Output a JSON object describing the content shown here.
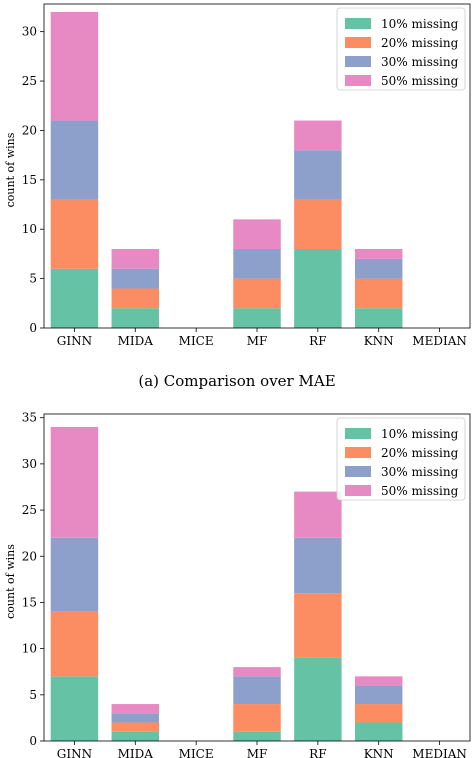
{
  "colors": {
    "s10": "#66c2a5",
    "s20": "#fc8d62",
    "s30": "#8da0cb",
    "s50": "#e78ac3"
  },
  "chart_data": [
    {
      "type": "bar",
      "stacked": true,
      "caption": "(a)  Comparison over MAE",
      "ylabel": "count of wins",
      "categories": [
        "GINN",
        "MIDA",
        "MICE",
        "MF",
        "RF",
        "KNN",
        "MEDIAN"
      ],
      "ylim": [
        0,
        32.8
      ],
      "yticks": [
        0,
        5,
        10,
        15,
        20,
        25,
        30
      ],
      "legend_position": "top-right",
      "series": [
        {
          "name": "10% missing",
          "color": "#66c2a5",
          "values": [
            6,
            2,
            0,
            2,
            8,
            2,
            0
          ]
        },
        {
          "name": "20% missing",
          "color": "#fc8d62",
          "values": [
            7,
            2,
            0,
            3,
            5,
            3,
            0
          ]
        },
        {
          "name": "30% missing",
          "color": "#8da0cb",
          "values": [
            8,
            2,
            0,
            3,
            5,
            2,
            0
          ]
        },
        {
          "name": "50% missing",
          "color": "#e78ac3",
          "values": [
            11,
            2,
            0,
            3,
            3,
            1,
            0
          ]
        }
      ]
    },
    {
      "type": "bar",
      "stacked": true,
      "caption": "",
      "ylabel": "count of wins",
      "categories": [
        "GINN",
        "MIDA",
        "MICE",
        "MF",
        "RF",
        "KNN",
        "MEDIAN"
      ],
      "ylim": [
        0,
        35.4
      ],
      "yticks": [
        0,
        5,
        10,
        15,
        20,
        25,
        30,
        35
      ],
      "legend_position": "top-right",
      "series": [
        {
          "name": "10% missing",
          "color": "#66c2a5",
          "values": [
            7,
            1,
            0,
            1,
            9,
            2,
            0
          ]
        },
        {
          "name": "20% missing",
          "color": "#fc8d62",
          "values": [
            7,
            1,
            0,
            3,
            7,
            2,
            0
          ]
        },
        {
          "name": "30% missing",
          "color": "#8da0cb",
          "values": [
            8,
            1,
            0,
            3,
            6,
            2,
            0
          ]
        },
        {
          "name": "50% missing",
          "color": "#e78ac3",
          "values": [
            12,
            1,
            0,
            1,
            5,
            1,
            0
          ]
        }
      ]
    }
  ]
}
